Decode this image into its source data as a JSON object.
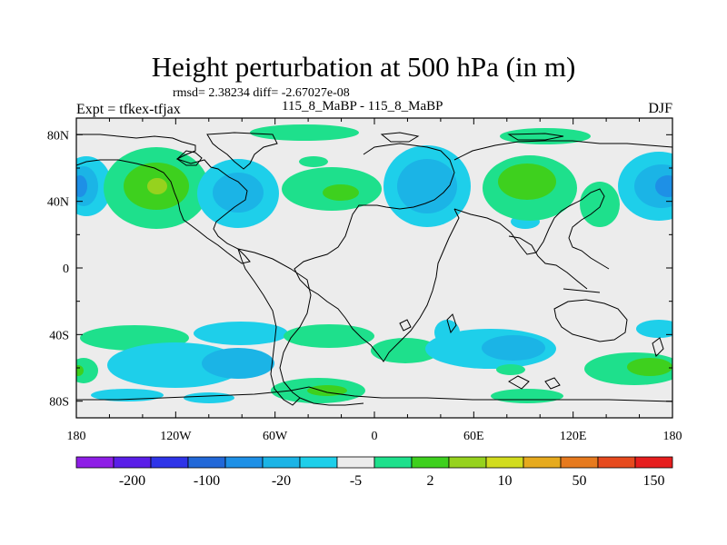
{
  "title": "Height perturbation at 500 hPa (in m)",
  "stats_line": "rmsd= 2.38234 diff= -2.67027e-08",
  "case_line": "115_8_MaBP - 115_8_MaBP",
  "expt_label": "Expt = tfkex-tfjax",
  "season": "DJF",
  "axes": {
    "x_ticks": [
      "180",
      "120W",
      "60W",
      "0",
      "60E",
      "120E",
      "180"
    ],
    "y_ticks": [
      "80N",
      "40N",
      "0",
      "40S",
      "80S"
    ],
    "lon_range": [
      -180,
      180
    ],
    "lat_range": [
      -90,
      90
    ]
  },
  "colorbar": {
    "colors": [
      "#8e1ee6",
      "#5a1ee8",
      "#2e34e8",
      "#2268d8",
      "#1e90e6",
      "#1bb4e6",
      "#1ecfea",
      "#ececec",
      "#1ee08c",
      "#3ed01e",
      "#96d21e",
      "#d2dc1e",
      "#e6aa1e",
      "#e67a1e",
      "#e64a1e",
      "#e61e1e"
    ],
    "labels": [
      "-200",
      "-100",
      "-20",
      "-5",
      "2",
      "10",
      "50",
      "150"
    ]
  },
  "chart_data": {
    "type": "heatmap",
    "field": "500 hPa height perturbation (m)",
    "colors_used": {
      "map_background": "#ececec",
      "pos_light": "#1ee08c",
      "pos_mid": "#3ed01e",
      "pos_high": "#96d21e",
      "neg_light": "#1ecfea",
      "neg_mid": "#1bb4e6",
      "neg_high": "#1e90e6"
    }
  }
}
